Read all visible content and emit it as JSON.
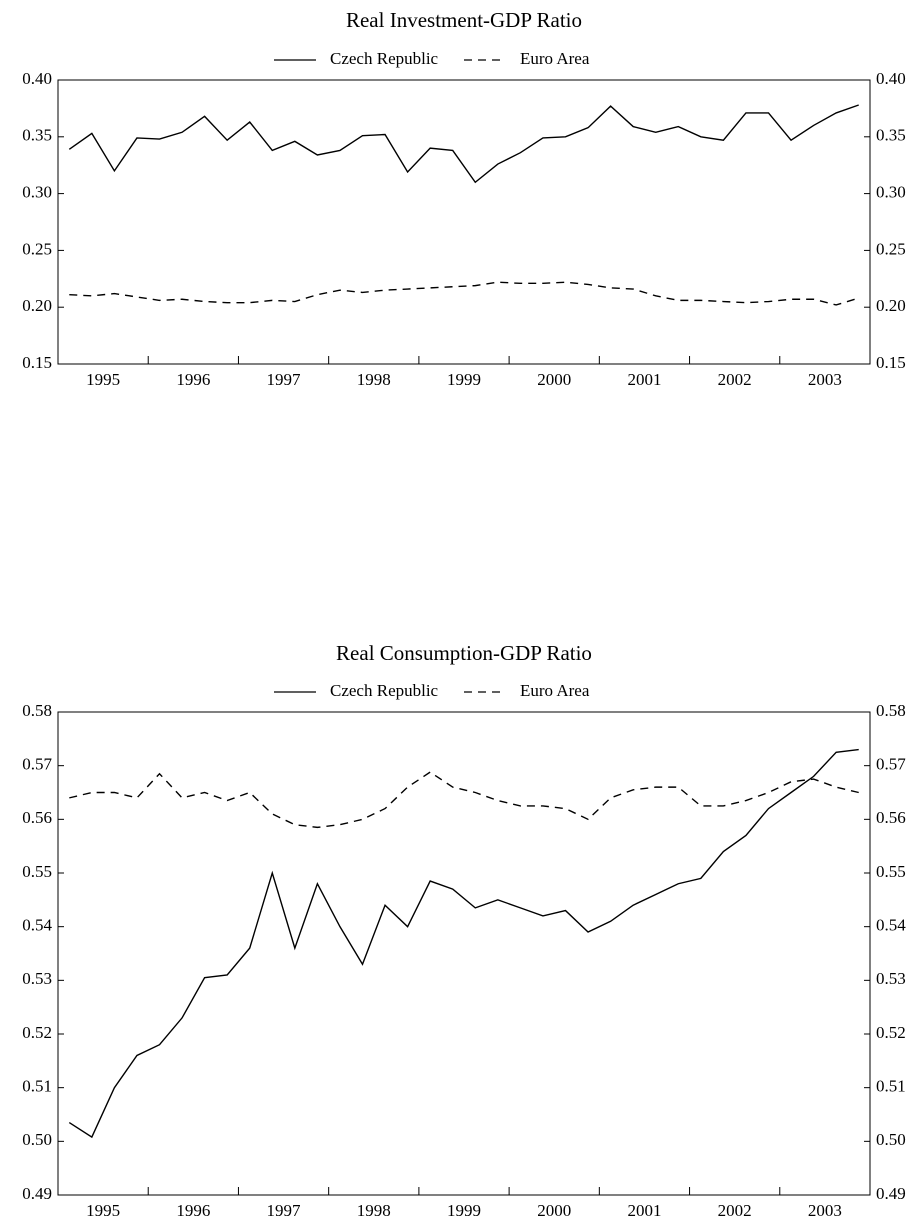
{
  "chart_data": [
    {
      "type": "line",
      "title": "Real Investment-GDP Ratio",
      "categories": [
        "1995",
        null,
        null,
        null,
        "1996",
        null,
        null,
        null,
        "1997",
        null,
        null,
        null,
        "1998",
        null,
        null,
        null,
        "1999",
        null,
        null,
        null,
        "2000",
        null,
        null,
        null,
        "2001",
        null,
        null,
        null,
        "2002",
        null,
        null,
        null,
        "2003",
        null,
        null,
        null
      ],
      "series": [
        {
          "name": "Czech Republic",
          "color": "#000000",
          "linestyle": "solid",
          "values": [
            0.339,
            0.353,
            0.32,
            0.349,
            0.348,
            0.354,
            0.368,
            0.347,
            0.363,
            0.338,
            0.346,
            0.334,
            0.338,
            0.351,
            0.352,
            0.319,
            0.34,
            0.338,
            0.31,
            0.326,
            0.336,
            0.349,
            0.35,
            0.358,
            0.377,
            0.359,
            0.354,
            0.359,
            0.35,
            0.347,
            0.371,
            0.371,
            0.347,
            0.36,
            0.371,
            0.378
          ]
        },
        {
          "name": "Euro Area",
          "color": "#000000",
          "linestyle": "dashed",
          "values": [
            0.211,
            0.21,
            0.212,
            0.209,
            0.206,
            0.207,
            0.205,
            0.204,
            0.204,
            0.206,
            0.205,
            0.211,
            0.215,
            0.213,
            0.215,
            0.216,
            0.217,
            0.218,
            0.219,
            0.222,
            0.221,
            0.221,
            0.222,
            0.22,
            0.217,
            0.216,
            0.21,
            0.206,
            0.206,
            0.205,
            0.204,
            0.205,
            0.207,
            0.207,
            0.202,
            0.208
          ]
        }
      ],
      "ylim": [
        0.15,
        0.4
      ],
      "yticks": [
        {
          "value": 0.15,
          "label": "0.15"
        },
        {
          "value": 0.2,
          "label": "0.20"
        },
        0.25,
        {
          "value": 0.3,
          "label": "0.30"
        },
        0.35,
        {
          "value": 0.4,
          "label": "0.40"
        }
      ]
    },
    {
      "type": "line",
      "title": "Real Consumption-GDP Ratio",
      "categories": [
        "1995",
        null,
        null,
        null,
        "1996",
        null,
        null,
        null,
        "1997",
        null,
        null,
        null,
        "1998",
        null,
        null,
        null,
        "1999",
        null,
        null,
        null,
        "2000",
        null,
        null,
        null,
        "2001",
        null,
        null,
        null,
        "2002",
        null,
        null,
        null,
        "2003",
        null,
        null,
        null
      ],
      "series": [
        {
          "name": "Czech Republic",
          "color": "#000000",
          "linestyle": "solid",
          "values": [
            0.5035,
            0.5008,
            0.51,
            0.516,
            0.518,
            0.523,
            0.5305,
            0.531,
            0.536,
            0.55,
            0.536,
            0.548,
            0.54,
            0.533,
            0.544,
            0.54,
            0.5485,
            0.547,
            0.5435,
            0.545,
            0.5435,
            0.542,
            0.543,
            0.539,
            0.541,
            0.544,
            0.546,
            0.548,
            0.549,
            0.554,
            0.557,
            0.562,
            0.565,
            0.568,
            0.5725,
            0.573
          ]
        },
        {
          "name": "Euro Area",
          "color": "#000000",
          "linestyle": "dashed",
          "values": [
            0.564,
            0.565,
            0.565,
            0.564,
            0.5685,
            0.564,
            0.565,
            0.5635,
            0.565,
            0.561,
            0.559,
            0.5585,
            0.559,
            0.56,
            0.562,
            0.566,
            0.5688,
            0.566,
            0.565,
            0.5635,
            0.5625,
            0.5625,
            0.562,
            0.56,
            0.564,
            0.5655,
            0.566,
            0.566,
            0.5625,
            0.5625,
            0.5635,
            0.565,
            0.567,
            0.5675,
            0.566,
            0.565
          ]
        }
      ],
      "ylim": [
        0.49,
        0.58
      ],
      "yticks": [
        0.49,
        {
          "value": 0.5,
          "label": "0.50"
        },
        0.51,
        0.52,
        0.53,
        0.54,
        0.55,
        0.56,
        0.57,
        0.58
      ]
    }
  ]
}
